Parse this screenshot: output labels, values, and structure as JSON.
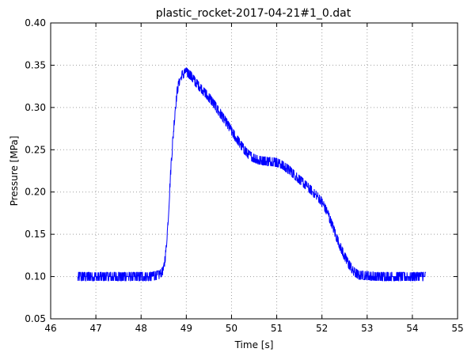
{
  "chart_data": {
    "type": "line",
    "title": "plastic_rocket-2017-04-21#1_0.dat",
    "xlabel": "Time [s]",
    "ylabel": "Pressure [MPa]",
    "xlim": [
      46,
      55
    ],
    "ylim": [
      0.05,
      0.4
    ],
    "x_ticks": [
      "46",
      "47",
      "48",
      "49",
      "50",
      "51",
      "52",
      "53",
      "54",
      "55"
    ],
    "y_ticks": [
      "0.05",
      "0.10",
      "0.15",
      "0.20",
      "0.25",
      "0.30",
      "0.35",
      "0.40"
    ],
    "grid": true,
    "line_color": "#0000ff",
    "series": [
      {
        "x": [
          46.6,
          46.8,
          47.0,
          47.2,
          47.4,
          47.6,
          47.8,
          48.0,
          48.2,
          48.4,
          48.5,
          48.55,
          48.6,
          48.65,
          48.7,
          48.75,
          48.8,
          48.85,
          48.9,
          48.95,
          49.0,
          49.05,
          49.1,
          49.15,
          49.2,
          49.3,
          49.4,
          49.5,
          49.6,
          49.7,
          49.8,
          49.9,
          50.0,
          50.1,
          50.2,
          50.3,
          50.4,
          50.5,
          50.6,
          50.7,
          50.8,
          50.9,
          51.0,
          51.1,
          51.2,
          51.3,
          51.4,
          51.5,
          51.6,
          51.7,
          51.8,
          51.9,
          52.0,
          52.1,
          52.2,
          52.3,
          52.4,
          52.5,
          52.6,
          52.7,
          52.8,
          53.0,
          53.2,
          53.4,
          53.6,
          53.8,
          54.0,
          54.2,
          54.3
        ],
        "y": [
          0.1,
          0.1,
          0.1,
          0.1,
          0.1,
          0.1,
          0.1,
          0.1,
          0.1,
          0.102,
          0.108,
          0.13,
          0.17,
          0.22,
          0.26,
          0.295,
          0.32,
          0.332,
          0.338,
          0.34,
          0.342,
          0.34,
          0.338,
          0.334,
          0.33,
          0.324,
          0.318,
          0.312,
          0.305,
          0.297,
          0.289,
          0.281,
          0.272,
          0.264,
          0.256,
          0.249,
          0.243,
          0.24,
          0.238,
          0.237,
          0.236,
          0.236,
          0.235,
          0.233,
          0.229,
          0.225,
          0.22,
          0.215,
          0.21,
          0.205,
          0.2,
          0.195,
          0.188,
          0.178,
          0.165,
          0.15,
          0.136,
          0.124,
          0.114,
          0.106,
          0.102,
          0.101,
          0.1,
          0.1,
          0.1,
          0.1,
          0.1,
          0.1,
          0.1
        ],
        "noise_amplitude": 0.007
      }
    ]
  }
}
